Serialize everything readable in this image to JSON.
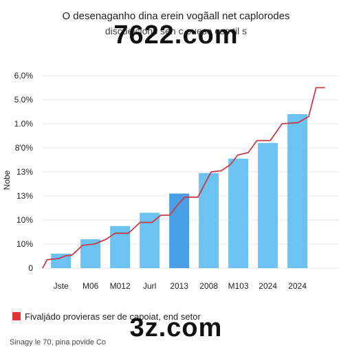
{
  "header": {
    "title": "O desenaganho dina erein vogãall net caplorodes",
    "subtitle": "discuelcions sen c ouese cos til s"
  },
  "watermarks": [
    "7622.com",
    "3z.com"
  ],
  "legend": {
    "label": "Fivaljádo provieras ser de capoiat, end setor",
    "color": "#e0323a"
  },
  "source": "Sinagy le 70, pina povide Co",
  "colors": {
    "bar": "#6cc2f0",
    "bar_highlight": "#4a9ee6",
    "line": "#c93a48",
    "grid": "#e6e6e6"
  },
  "chart_data": {
    "type": "bar",
    "ylabel": "Nobe",
    "y_tick_labels": [
      "0",
      "10%",
      "10%",
      "13%",
      "13%",
      "8'0%",
      "1.0%",
      "5.0%",
      "6,0%"
    ],
    "x_tick_labels": [
      "Jste",
      "M06",
      "M012",
      "Jurl",
      "2013",
      "2008",
      "M103",
      "2024",
      "2024"
    ],
    "grid": true,
    "ylim": [
      0,
      8
    ],
    "bars": [
      {
        "x": "Jste",
        "value": 0.6
      },
      {
        "x": "M06",
        "value": 1.2
      },
      {
        "x": "M012",
        "value": 1.75
      },
      {
        "x": "Jurl",
        "value": 2.3
      },
      {
        "x": "2013",
        "value": 3.1,
        "highlight": true
      },
      {
        "x": "2008",
        "value": 3.95
      },
      {
        "x": "2008",
        "value": 4.55
      },
      {
        "x": "M103",
        "value": 5.2
      },
      {
        "x": "2024",
        "value": 6.4
      }
    ],
    "line": [
      {
        "x": 0.0,
        "y": 0.0
      },
      {
        "x": 0.15,
        "y": 0.35
      },
      {
        "x": 0.55,
        "y": 0.4
      },
      {
        "x": 0.75,
        "y": 0.5
      },
      {
        "x": 1.0,
        "y": 0.55
      },
      {
        "x": 1.35,
        "y": 0.95
      },
      {
        "x": 1.75,
        "y": 1.0
      },
      {
        "x": 2.15,
        "y": 1.2
      },
      {
        "x": 2.45,
        "y": 1.45
      },
      {
        "x": 2.9,
        "y": 1.45
      },
      {
        "x": 3.3,
        "y": 1.9
      },
      {
        "x": 3.7,
        "y": 1.9
      },
      {
        "x": 4.0,
        "y": 2.2
      },
      {
        "x": 4.3,
        "y": 2.2
      },
      {
        "x": 4.55,
        "y": 2.6
      },
      {
        "x": 4.8,
        "y": 2.95
      },
      {
        "x": 5.25,
        "y": 2.95
      },
      {
        "x": 5.7,
        "y": 4.0
      },
      {
        "x": 6.05,
        "y": 4.05
      },
      {
        "x": 6.35,
        "y": 4.3
      },
      {
        "x": 6.6,
        "y": 4.7
      },
      {
        "x": 6.95,
        "y": 4.8
      },
      {
        "x": 7.25,
        "y": 5.3
      },
      {
        "x": 7.7,
        "y": 5.3
      },
      {
        "x": 8.1,
        "y": 6.0
      },
      {
        "x": 8.65,
        "y": 6.05
      },
      {
        "x": 9.0,
        "y": 6.3
      },
      {
        "x": 9.25,
        "y": 7.5
      },
      {
        "x": 9.55,
        "y": 7.5
      }
    ]
  }
}
